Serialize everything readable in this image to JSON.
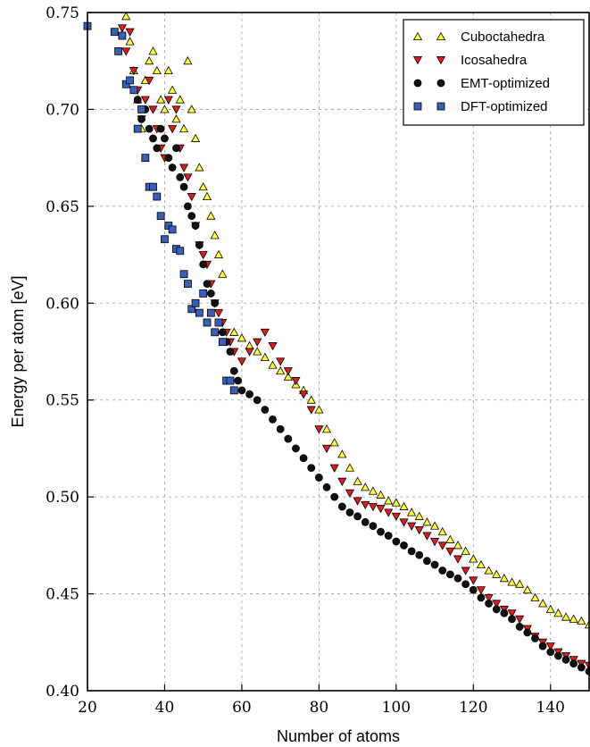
{
  "chart_data": {
    "type": "scatter",
    "title": "",
    "xlabel": "Number of atoms",
    "ylabel": "Energy per atom [eV]",
    "xlim": [
      20,
      150
    ],
    "ylim": [
      0.4,
      0.75
    ],
    "xticks": [
      20,
      40,
      60,
      80,
      100,
      120,
      140
    ],
    "xtick_labels": [
      "20",
      "40",
      "60",
      "80",
      "100",
      "120",
      "140"
    ],
    "yticks": [
      0.4,
      0.45,
      0.5,
      0.55,
      0.6,
      0.65,
      0.7,
      0.75
    ],
    "ytick_labels": [
      "0.40",
      "0.45",
      "0.50",
      "0.55",
      "0.60",
      "0.65",
      "0.70",
      "0.75"
    ],
    "grid": true,
    "legend_position": "top-right",
    "series": [
      {
        "name": "Cuboctahedra",
        "marker": "triangle-up",
        "color": "#ffff33",
        "x": [
          30,
          31,
          32,
          33,
          34,
          35,
          36,
          37,
          38,
          39,
          40,
          41,
          42,
          43,
          44,
          45,
          46,
          47,
          48,
          49,
          50,
          51,
          52,
          53,
          54,
          55,
          58,
          60,
          62,
          64,
          66,
          68,
          70,
          72,
          74,
          76,
          78,
          80,
          82,
          84,
          86,
          88,
          90,
          92,
          94,
          96,
          98,
          100,
          102,
          104,
          106,
          108,
          110,
          112,
          114,
          116,
          118,
          120,
          122,
          124,
          126,
          128,
          130,
          132,
          134,
          136,
          138,
          140,
          142,
          144,
          146,
          148,
          150
        ],
        "y": [
          0.748,
          0.735,
          0.72,
          0.705,
          0.69,
          0.715,
          0.725,
          0.73,
          0.72,
          0.705,
          0.7,
          0.72,
          0.71,
          0.695,
          0.705,
          0.69,
          0.725,
          0.7,
          0.685,
          0.67,
          0.66,
          0.655,
          0.645,
          0.635,
          0.625,
          0.615,
          0.585,
          0.582,
          0.578,
          0.575,
          0.572,
          0.568,
          0.565,
          0.562,
          0.558,
          0.555,
          0.55,
          0.545,
          0.535,
          0.528,
          0.522,
          0.515,
          0.508,
          0.505,
          0.503,
          0.501,
          0.498,
          0.497,
          0.495,
          0.492,
          0.49,
          0.487,
          0.485,
          0.482,
          0.478,
          0.475,
          0.472,
          0.468,
          0.465,
          0.462,
          0.46,
          0.458,
          0.456,
          0.455,
          0.452,
          0.448,
          0.445,
          0.442,
          0.44,
          0.438,
          0.437,
          0.436,
          0.434
        ]
      },
      {
        "name": "Icosahedra",
        "marker": "triangle-down",
        "color": "#e41a1c",
        "x": [
          29,
          30,
          31,
          32,
          33,
          34,
          35,
          36,
          37,
          38,
          39,
          40,
          41,
          42,
          43,
          44,
          45,
          46,
          47,
          48,
          49,
          50,
          51,
          52,
          53,
          54,
          55,
          56,
          57,
          58,
          60,
          62,
          64,
          66,
          68,
          70,
          72,
          74,
          76,
          78,
          80,
          82,
          84,
          86,
          88,
          90,
          92,
          94,
          96,
          98,
          100,
          102,
          104,
          106,
          108,
          110,
          112,
          114,
          116,
          118,
          120,
          122,
          124,
          126,
          128,
          130,
          132,
          134,
          136,
          138,
          140,
          142,
          144,
          146,
          148,
          150
        ],
        "y": [
          0.742,
          0.73,
          0.74,
          0.72,
          0.71,
          0.695,
          0.705,
          0.715,
          0.7,
          0.69,
          0.68,
          0.675,
          0.705,
          0.69,
          0.7,
          0.68,
          0.67,
          0.665,
          0.655,
          0.64,
          0.63,
          0.625,
          0.62,
          0.61,
          0.6,
          0.595,
          0.59,
          0.585,
          0.58,
          0.575,
          0.57,
          0.575,
          0.58,
          0.585,
          0.578,
          0.57,
          0.565,
          0.56,
          0.553,
          0.545,
          0.535,
          0.525,
          0.515,
          0.508,
          0.502,
          0.498,
          0.496,
          0.495,
          0.494,
          0.492,
          0.49,
          0.487,
          0.485,
          0.483,
          0.48,
          0.477,
          0.475,
          0.472,
          0.468,
          0.462,
          0.457,
          0.452,
          0.448,
          0.445,
          0.442,
          0.44,
          0.437,
          0.432,
          0.428,
          0.425,
          0.423,
          0.42,
          0.418,
          0.416,
          0.414,
          0.413
        ]
      },
      {
        "name": "EMT-optimized",
        "marker": "circle",
        "color": "#111111",
        "x": [
          33,
          34,
          35,
          36,
          37,
          38,
          39,
          40,
          41,
          42,
          43,
          44,
          45,
          46,
          47,
          48,
          49,
          50,
          51,
          52,
          53,
          54,
          55,
          56,
          57,
          58,
          59,
          60,
          62,
          64,
          66,
          68,
          70,
          72,
          74,
          76,
          78,
          80,
          82,
          84,
          86,
          88,
          90,
          92,
          94,
          96,
          98,
          100,
          102,
          104,
          106,
          108,
          110,
          112,
          114,
          116,
          118,
          120,
          122,
          124,
          126,
          128,
          130,
          132,
          134,
          136,
          138,
          140,
          142,
          144,
          146,
          148,
          150
        ],
        "y": [
          0.705,
          0.695,
          0.7,
          0.69,
          0.685,
          0.68,
          0.69,
          0.685,
          0.675,
          0.67,
          0.68,
          0.665,
          0.66,
          0.65,
          0.645,
          0.64,
          0.63,
          0.62,
          0.61,
          0.605,
          0.6,
          0.59,
          0.585,
          0.58,
          0.575,
          0.565,
          0.56,
          0.555,
          0.553,
          0.55,
          0.545,
          0.54,
          0.535,
          0.53,
          0.525,
          0.52,
          0.515,
          0.51,
          0.505,
          0.5,
          0.495,
          0.492,
          0.49,
          0.487,
          0.485,
          0.482,
          0.48,
          0.477,
          0.475,
          0.472,
          0.47,
          0.467,
          0.465,
          0.462,
          0.46,
          0.458,
          0.455,
          0.452,
          0.448,
          0.445,
          0.442,
          0.44,
          0.437,
          0.433,
          0.43,
          0.427,
          0.423,
          0.42,
          0.418,
          0.416,
          0.414,
          0.412,
          0.41
        ]
      },
      {
        "name": "DFT-optimized",
        "marker": "square",
        "color": "#3a5fb8",
        "x": [
          20,
          27,
          28,
          29,
          30,
          31,
          32,
          33,
          34,
          35,
          36,
          37,
          38,
          39,
          40,
          41,
          42,
          43,
          44,
          45,
          46,
          47,
          48,
          49,
          50,
          51,
          52,
          53,
          54,
          55,
          56,
          57,
          58
        ],
        "y": [
          0.743,
          0.74,
          0.73,
          0.738,
          0.713,
          0.715,
          0.71,
          0.69,
          0.7,
          0.675,
          0.66,
          0.66,
          0.655,
          0.645,
          0.633,
          0.64,
          0.638,
          0.628,
          0.627,
          0.615,
          0.61,
          0.597,
          0.6,
          0.595,
          0.605,
          0.59,
          0.595,
          0.585,
          0.59,
          0.58,
          0.56,
          0.56,
          0.555
        ]
      }
    ]
  }
}
